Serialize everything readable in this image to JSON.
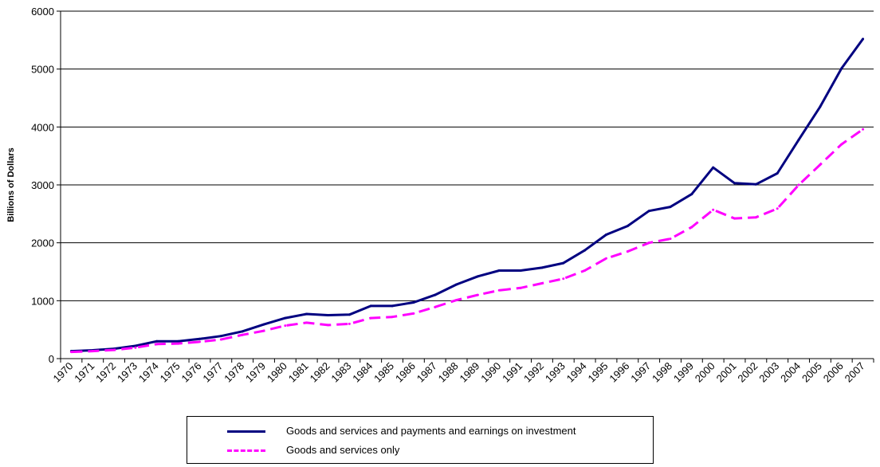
{
  "chart_data": {
    "type": "line",
    "ylabel": "Billions of Dollars",
    "xlabel": "",
    "ylim": [
      0,
      6000
    ],
    "yticks": [
      0,
      1000,
      2000,
      3000,
      4000,
      5000,
      6000
    ],
    "grid": "horizontal",
    "legend_position": "bottom",
    "categories": [
      "1970",
      "1971",
      "1972",
      "1973",
      "1974",
      "1975",
      "1976",
      "1977",
      "1978",
      "1979",
      "1980",
      "1981",
      "1982",
      "1983",
      "1984",
      "1985",
      "1986",
      "1987",
      "1988",
      "1989",
      "1990",
      "1991",
      "1992",
      "1993",
      "1994",
      "1995",
      "1996",
      "1997",
      "1998",
      "1999",
      "2000",
      "2001",
      "2002",
      "2003",
      "2004",
      "2005",
      "2006",
      "2007"
    ],
    "series": [
      {
        "name": "Goods and services and payments and earnings on investment",
        "color": "#000080",
        "dash": "solid",
        "values": [
          130,
          145,
          170,
          220,
          300,
          300,
          340,
          390,
          470,
          590,
          700,
          770,
          750,
          760,
          910,
          910,
          970,
          1100,
          1280,
          1420,
          1520,
          1520,
          1570,
          1650,
          1870,
          2140,
          2290,
          2550,
          2620,
          2840,
          3300,
          3030,
          3010,
          3200,
          3780,
          4350,
          5010,
          5520
        ]
      },
      {
        "name": "Goods and services only",
        "color": "#ff00ff",
        "dash": "dashed",
        "values": [
          115,
          130,
          150,
          190,
          250,
          260,
          290,
          330,
          410,
          480,
          570,
          620,
          580,
          600,
          700,
          720,
          780,
          890,
          1010,
          1100,
          1180,
          1220,
          1300,
          1380,
          1520,
          1730,
          1850,
          2000,
          2070,
          2270,
          2570,
          2420,
          2440,
          2590,
          3000,
          3350,
          3700,
          3960
        ]
      }
    ]
  }
}
